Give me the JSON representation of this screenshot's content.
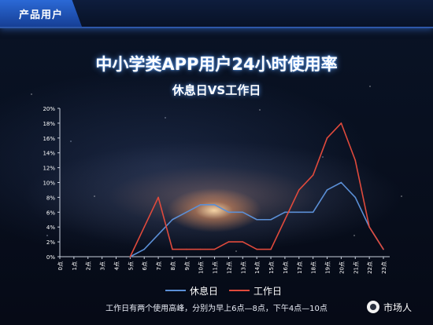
{
  "header": {
    "tab_label": "产品用户"
  },
  "chart_data": {
    "type": "line",
    "title": "中小学类APP用户24小时使用率",
    "subtitle": "休息日VS工作日",
    "categories": [
      "0点",
      "1点",
      "2点",
      "3点",
      "4点",
      "5点",
      "6点",
      "7点",
      "8点",
      "9点",
      "10点",
      "11点",
      "12点",
      "13点",
      "14点",
      "15点",
      "16点",
      "17点",
      "18点",
      "19点",
      "20点",
      "21点",
      "22点",
      "23点"
    ],
    "series": [
      {
        "name": "休息日",
        "color": "#5b8fd6",
        "values": [
          null,
          null,
          null,
          null,
          null,
          0,
          1,
          3,
          5,
          6,
          7,
          7,
          6,
          6,
          5,
          5,
          6,
          6,
          6,
          9,
          10,
          8,
          4,
          1
        ]
      },
      {
        "name": "工作日",
        "color": "#e04a3c",
        "values": [
          null,
          null,
          null,
          null,
          null,
          0,
          4,
          8,
          1,
          1,
          1,
          1,
          2,
          2,
          1,
          1,
          5,
          9,
          11,
          16,
          18,
          13,
          4,
          1
        ]
      }
    ],
    "ylim": [
      0,
      20
    ],
    "ytick_step": 2,
    "ytick_suffix": "%",
    "grid": false,
    "legend_position": "bottom"
  },
  "caption": "工作日有两个使用高峰，分别为早上6点—8点，下午4点—10点",
  "logo": {
    "text": "市场人"
  }
}
